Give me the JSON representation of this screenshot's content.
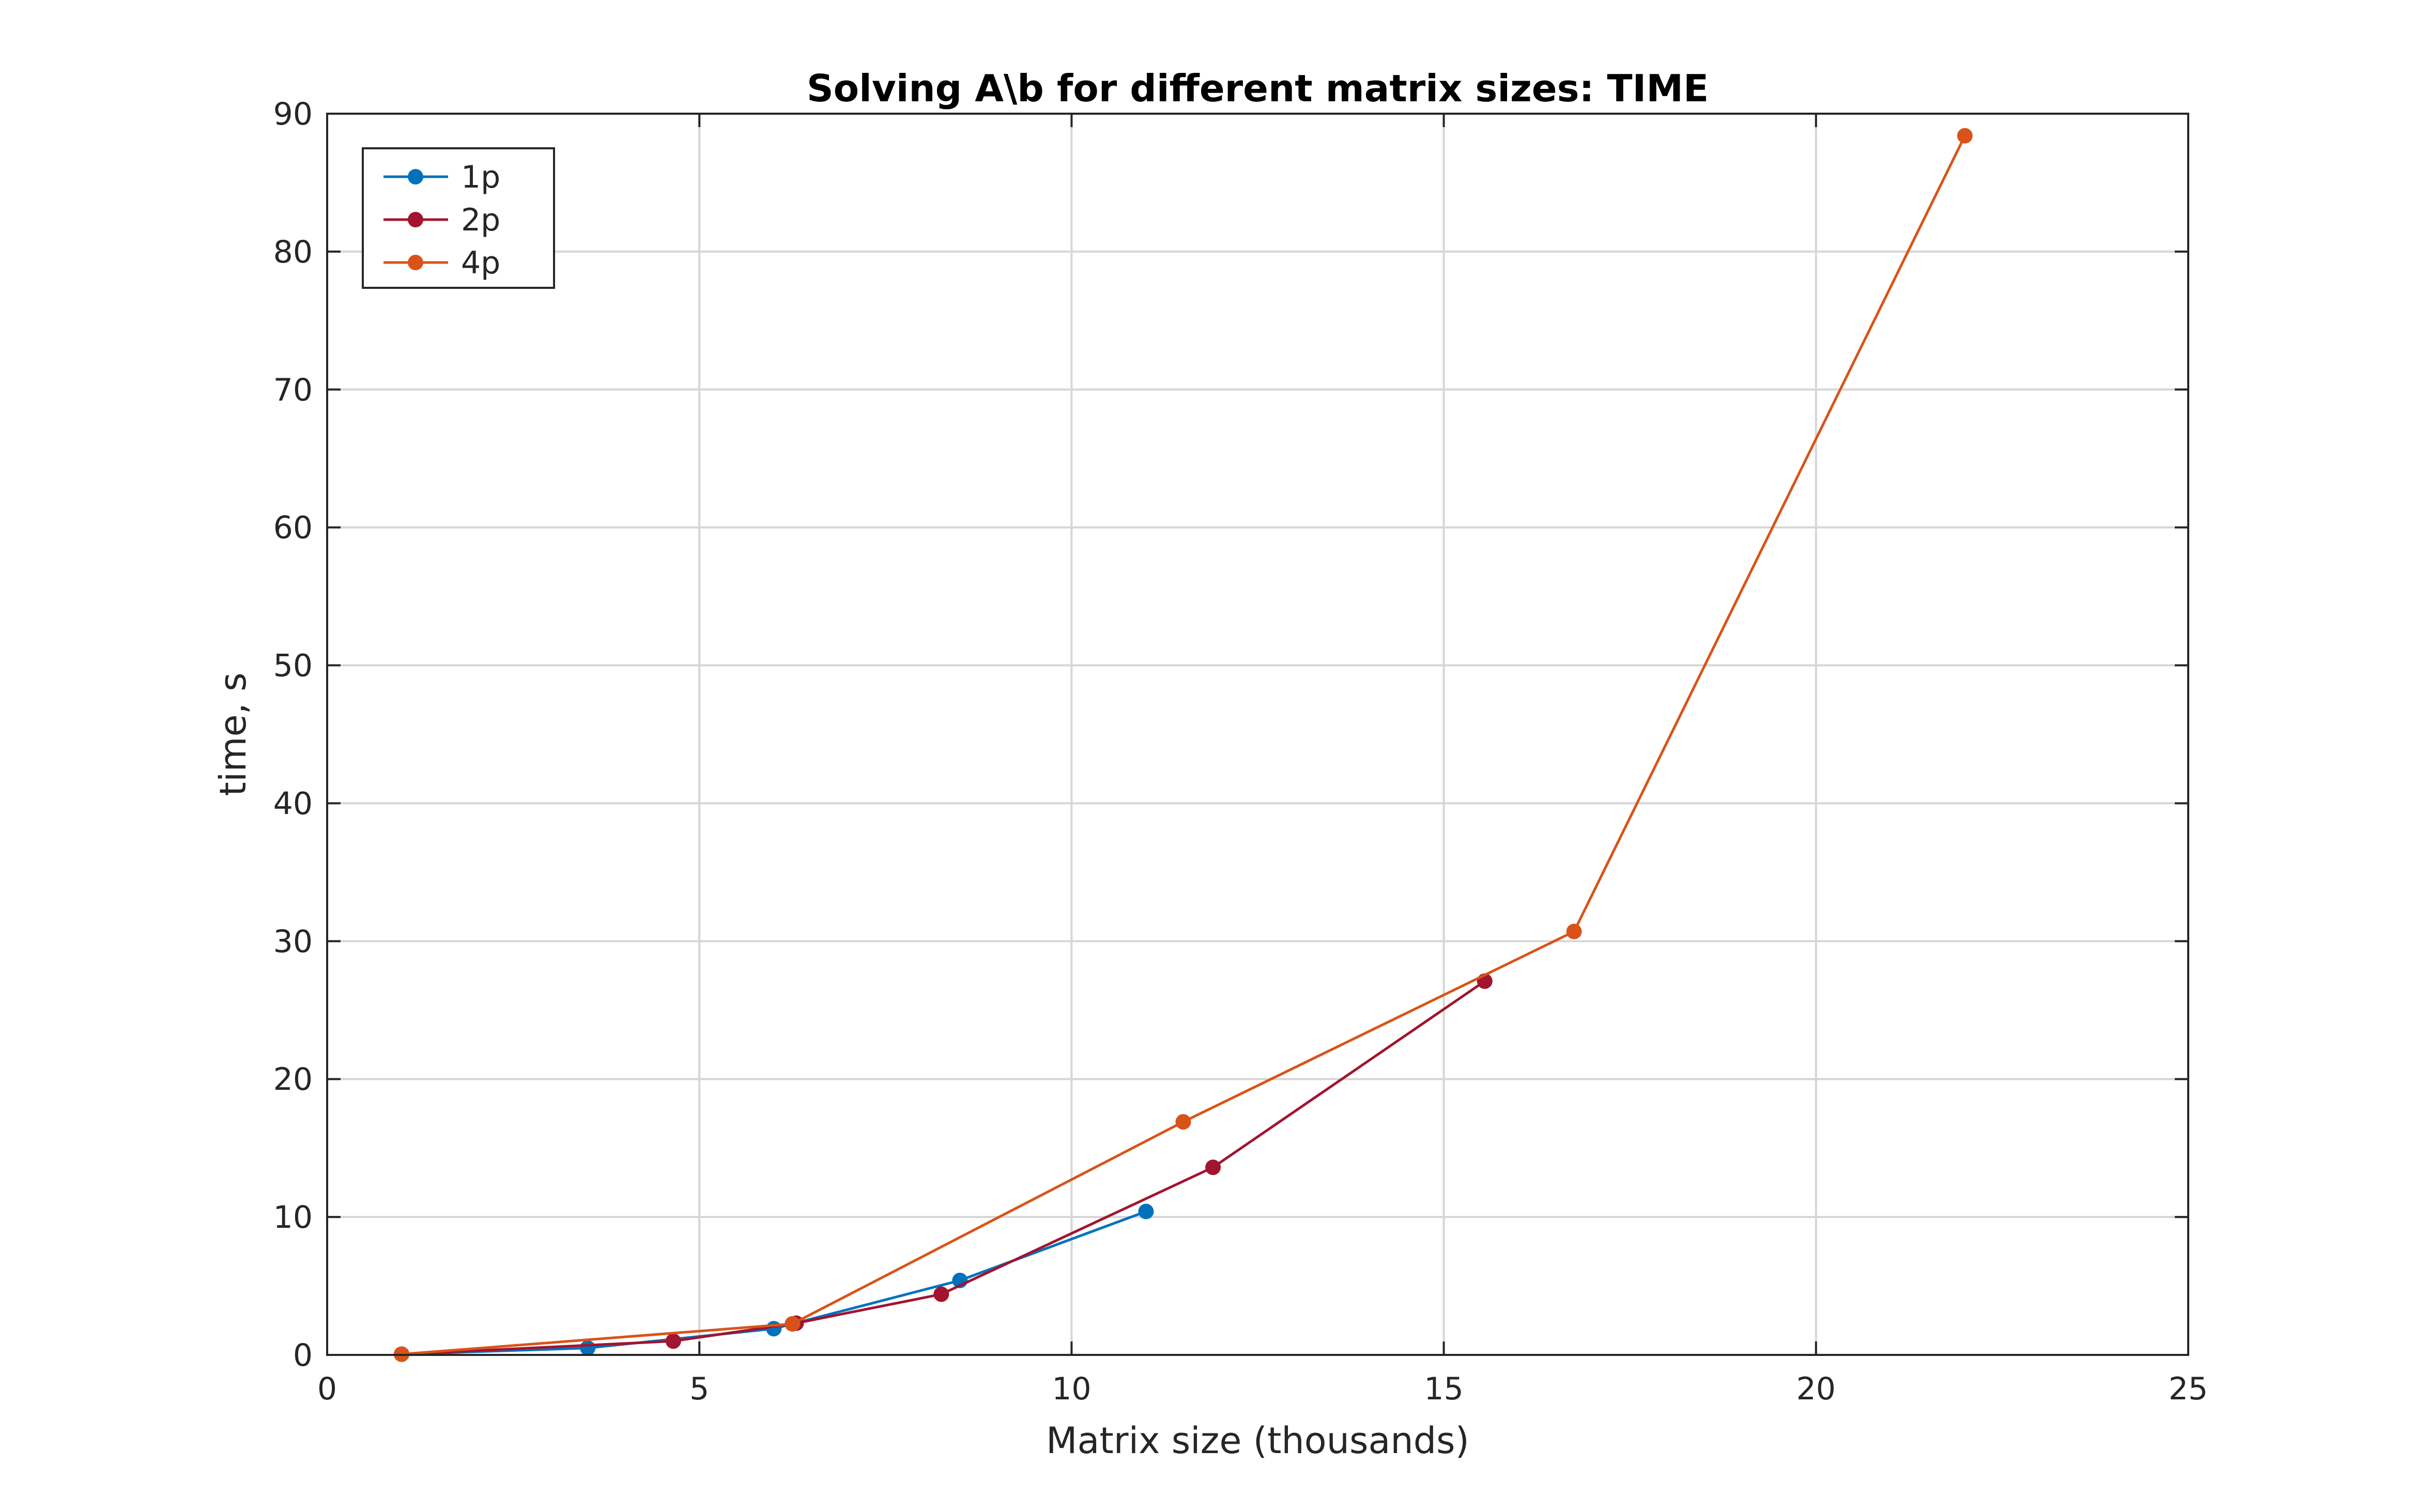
{
  "chart_data": {
    "type": "line",
    "title": "Solving A\\b for different matrix sizes: TIME",
    "xlabel": "Matrix size (thousands)",
    "ylabel": "time, s",
    "xlim": [
      0,
      25
    ],
    "ylim": [
      0,
      90
    ],
    "xticks": [
      0,
      5,
      10,
      15,
      20,
      25
    ],
    "yticks": [
      0,
      10,
      20,
      30,
      40,
      50,
      60,
      70,
      80,
      90
    ],
    "grid": true,
    "legend_position": "top-left",
    "series": [
      {
        "name": "1p",
        "color": "#0072bd",
        "x": [
          1.0,
          3.5,
          6.0,
          8.5,
          11.0
        ],
        "y": [
          0.05,
          0.5,
          1.9,
          5.4,
          10.4
        ]
      },
      {
        "name": "2p",
        "color": "#a2142f",
        "x": [
          1.0,
          4.65,
          6.3,
          8.25,
          11.9,
          15.55
        ],
        "y": [
          0.05,
          1.0,
          2.3,
          4.4,
          13.6,
          27.1
        ]
      },
      {
        "name": "4p",
        "color": "#d95319",
        "x": [
          1.0,
          6.25,
          11.5,
          16.75,
          22.0
        ],
        "y": [
          0.05,
          2.25,
          16.9,
          30.7,
          88.4
        ]
      }
    ]
  }
}
